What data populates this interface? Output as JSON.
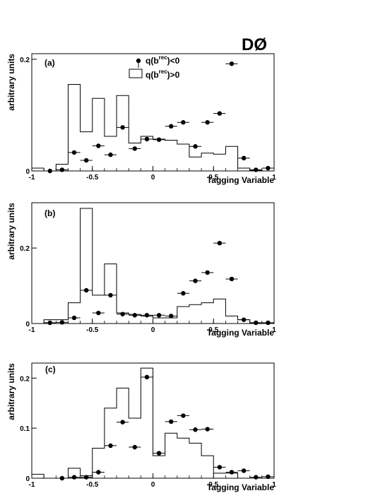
{
  "experiment_label": "DØ",
  "legend": {
    "points_label": "q(b^{rec})<0",
    "hist_label": "q(b^{rec})>0"
  },
  "chart_data": [
    {
      "type": "bar",
      "panel_label": "(a)",
      "xlabel": "Tagging Variable",
      "ylabel": "arbitrary units",
      "xlim": [
        -1,
        1
      ],
      "ylim": [
        0,
        0.21
      ],
      "xticks": [
        -1,
        -0.5,
        0,
        0.5,
        1
      ],
      "xtick_labels": [
        "-1",
        "-0.5",
        "0",
        "0.5",
        "1"
      ],
      "yticks": [
        0,
        0.2
      ],
      "ytick_labels": [
        "0",
        "0.2"
      ],
      "bin_edges": [
        -1,
        -0.9,
        -0.8,
        -0.7,
        -0.6,
        -0.5,
        -0.4,
        -0.3,
        -0.2,
        -0.1,
        0,
        0.1,
        0.2,
        0.3,
        0.4,
        0.5,
        0.6,
        0.7,
        0.8,
        0.9,
        1
      ],
      "series": [
        {
          "name": "q(b^{rec})>0",
          "kind": "histogram",
          "values": [
            0.005,
            0.0,
            0.012,
            0.155,
            0.07,
            0.13,
            0.062,
            0.135,
            0.05,
            0.062,
            0.057,
            0.055,
            0.048,
            0.025,
            0.032,
            0.03,
            0.044,
            0.005,
            0.001,
            0.0
          ]
        },
        {
          "name": "q(b^{rec})<0",
          "kind": "points",
          "x": [
            -0.85,
            -0.75,
            -0.65,
            -0.55,
            -0.45,
            -0.35,
            -0.25,
            -0.15,
            -0.05,
            0.05,
            0.15,
            0.25,
            0.35,
            0.45,
            0.55,
            0.65,
            0.75,
            0.85,
            0.95
          ],
          "values": [
            0.0,
            0.002,
            0.033,
            0.019,
            0.045,
            0.029,
            0.078,
            0.04,
            0.057,
            0.056,
            0.08,
            0.087,
            0.044,
            0.087,
            0.103,
            0.192,
            0.023,
            0.002,
            0.005
          ]
        }
      ]
    },
    {
      "type": "bar",
      "panel_label": "(b)",
      "xlabel": "Tagging Variable",
      "ylabel": "arbitrary units",
      "xlim": [
        -1,
        1
      ],
      "ylim": [
        0,
        0.32
      ],
      "xticks": [
        -1,
        -0.5,
        0,
        0.5,
        1
      ],
      "xtick_labels": [
        "-1",
        "-0.5",
        "0",
        "0.5",
        "1"
      ],
      "yticks": [
        0,
        0.2
      ],
      "ytick_labels": [
        "0",
        "0.2"
      ],
      "bin_edges": [
        -1,
        -0.9,
        -0.8,
        -0.7,
        -0.6,
        -0.5,
        -0.4,
        -0.3,
        -0.2,
        -0.1,
        0,
        0.1,
        0.2,
        0.3,
        0.4,
        0.5,
        0.6,
        0.7,
        0.8,
        0.9,
        1
      ],
      "series": [
        {
          "name": "q(b^{rec})>0",
          "kind": "histogram",
          "values": [
            0.0,
            0.01,
            0.01,
            0.055,
            0.305,
            0.075,
            0.158,
            0.028,
            0.024,
            0.02,
            0.015,
            0.015,
            0.045,
            0.05,
            0.055,
            0.065,
            0.02,
            0.01,
            0.001,
            0.0
          ]
        },
        {
          "name": "q(b^{rec})<0",
          "kind": "points",
          "x": [
            -0.85,
            -0.75,
            -0.65,
            -0.55,
            -0.45,
            -0.35,
            -0.25,
            -0.15,
            -0.05,
            0.05,
            0.15,
            0.25,
            0.35,
            0.45,
            0.55,
            0.65,
            0.75,
            0.85,
            0.95
          ],
          "values": [
            0.002,
            0.003,
            0.015,
            0.088,
            0.028,
            0.075,
            0.025,
            0.022,
            0.022,
            0.022,
            0.02,
            0.08,
            0.113,
            0.135,
            0.213,
            0.118,
            0.01,
            0.002,
            0.002
          ]
        }
      ]
    },
    {
      "type": "bar",
      "panel_label": "(c)",
      "xlabel": "Tagging Variable",
      "ylabel": "arbitrary units",
      "xlim": [
        -1,
        1
      ],
      "ylim": [
        0,
        0.23
      ],
      "xticks": [
        -1,
        -0.5,
        0,
        0.5,
        1
      ],
      "xtick_labels": [
        "-1",
        "-0.5",
        "0",
        "0.5",
        "1"
      ],
      "yticks": [
        0,
        0.1,
        0.2
      ],
      "ytick_labels": [
        "0",
        "0.1",
        "0.2"
      ],
      "bin_edges": [
        -1,
        -0.9,
        -0.8,
        -0.7,
        -0.6,
        -0.5,
        -0.4,
        -0.3,
        -0.2,
        -0.1,
        0,
        0.1,
        0.2,
        0.3,
        0.4,
        0.5,
        0.6,
        0.7,
        0.8,
        0.9,
        1
      ],
      "series": [
        {
          "name": "q(b^{rec})>0",
          "kind": "histogram",
          "values": [
            0.008,
            0.0,
            0.0,
            0.02,
            0.005,
            0.06,
            0.14,
            0.18,
            0.12,
            0.22,
            0.045,
            0.09,
            0.08,
            0.07,
            0.045,
            0.01,
            0.01,
            0.0,
            0.0,
            0.0
          ]
        },
        {
          "name": "q(b^{rec})<0",
          "kind": "points",
          "x": [
            -0.75,
            -0.65,
            -0.55,
            -0.45,
            -0.35,
            -0.25,
            -0.15,
            -0.05,
            0.05,
            0.15,
            0.25,
            0.35,
            0.45,
            0.55,
            0.65,
            0.75,
            0.85,
            0.95
          ],
          "values": [
            0.0,
            0.002,
            0.002,
            0.012,
            0.065,
            0.112,
            0.062,
            0.202,
            0.05,
            0.113,
            0.125,
            0.097,
            0.098,
            0.022,
            0.012,
            0.015,
            0.002,
            0.003
          ]
        }
      ]
    }
  ]
}
